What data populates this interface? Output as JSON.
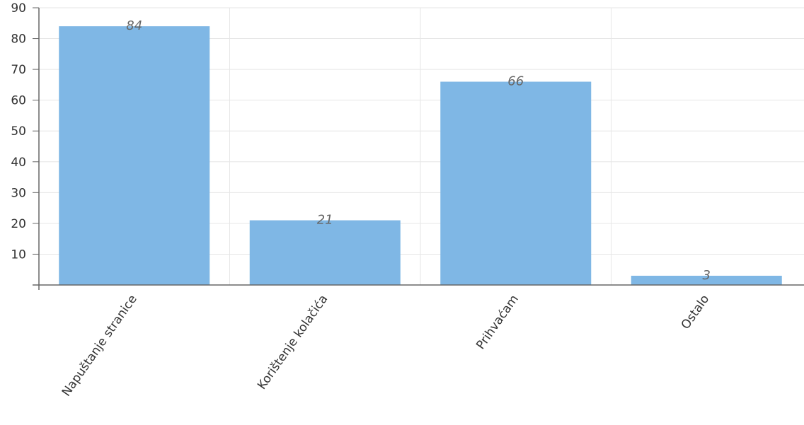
{
  "chart_data": {
    "type": "bar",
    "categories": [
      "Napuštanje stranice",
      "Korištenje kolačića",
      "Prihvaćam",
      "Ostalo"
    ],
    "values": [
      84,
      21,
      66,
      3
    ],
    "title": "",
    "xlabel": "",
    "ylabel": "",
    "ylim": [
      0,
      90
    ],
    "yticks": [
      10,
      20,
      30,
      40,
      50,
      60,
      70,
      80,
      90
    ],
    "grid": true,
    "legend": "none",
    "data_labels": true,
    "colors": {
      "bar": "#7fb7e5",
      "grid": "#e6e6e6",
      "axis": "#666666"
    }
  }
}
